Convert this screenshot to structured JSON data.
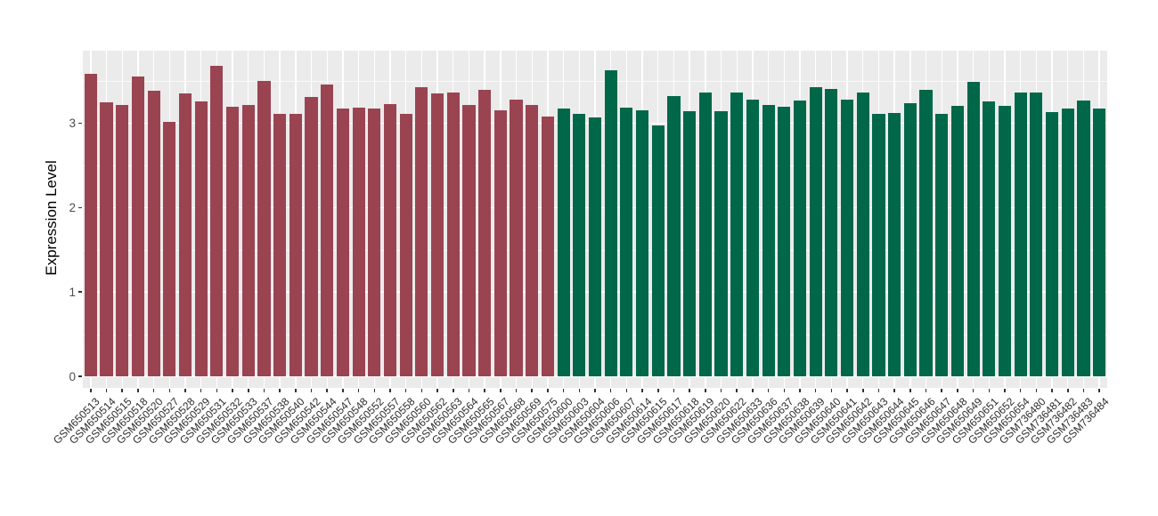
{
  "figure": {
    "background": "#FFFFFF",
    "panel_background": "#EBEBEB",
    "grid_color": "#FFFFFF",
    "axis_tick_color": "#333333",
    "axis_text_color": "#4D4D4D",
    "axis_title_color": "#000000"
  },
  "chart_data": {
    "type": "bar",
    "title": "",
    "xlabel": "",
    "ylabel": "Expression Level",
    "ylim": [
      0,
      3.86
    ],
    "yticks": [
      0,
      1,
      2,
      3
    ],
    "grid": "major and minor horizontal white lines, vertical white line per category",
    "legend_position": "none",
    "series": [
      {
        "name": "group-maroon",
        "color": "#9A4452",
        "categories": [
          "GSM650513",
          "GSM650514",
          "GSM650515",
          "GSM650518",
          "GSM650520",
          "GSM650527",
          "GSM650528",
          "GSM650529",
          "GSM650531",
          "GSM650532",
          "GSM650533",
          "GSM650537",
          "GSM650538",
          "GSM650540",
          "GSM650542",
          "GSM650544",
          "GSM650547",
          "GSM650548",
          "GSM650552",
          "GSM650557",
          "GSM650558",
          "GSM650560",
          "GSM650562",
          "GSM650563",
          "GSM650564",
          "GSM650565",
          "GSM650567",
          "GSM650568",
          "GSM650569",
          "GSM650575"
        ],
        "values": [
          3.59,
          3.25,
          3.22,
          3.56,
          3.39,
          3.02,
          3.35,
          3.26,
          3.68,
          3.2,
          3.22,
          3.5,
          3.11,
          3.11,
          3.31,
          3.46,
          3.18,
          3.19,
          3.17,
          3.23,
          3.11,
          3.43,
          3.35,
          3.37,
          3.22,
          3.4,
          3.15,
          3.28,
          3.22,
          3.08
        ]
      },
      {
        "name": "group-green",
        "color": "#006749",
        "categories": [
          "GSM650600",
          "GSM650603",
          "GSM650604",
          "GSM650606",
          "GSM650607",
          "GSM650614",
          "GSM650615",
          "GSM650617",
          "GSM650618",
          "GSM650619",
          "GSM650620",
          "GSM650622",
          "GSM650633",
          "GSM650636",
          "GSM650637",
          "GSM650638",
          "GSM650639",
          "GSM650640",
          "GSM650641",
          "GSM650642",
          "GSM650643",
          "GSM650644",
          "GSM650645",
          "GSM650646",
          "GSM650647",
          "GSM650648",
          "GSM650649",
          "GSM650651",
          "GSM650652",
          "GSM650654",
          "GSM736480",
          "GSM736481",
          "GSM736482",
          "GSM736483",
          "GSM736484"
        ],
        "values": [
          3.18,
          3.11,
          3.07,
          3.63,
          3.19,
          3.15,
          2.98,
          3.32,
          3.14,
          3.37,
          3.14,
          3.37,
          3.28,
          3.22,
          3.2,
          3.27,
          3.43,
          3.41,
          3.28,
          3.37,
          3.11,
          3.12,
          3.24,
          3.4,
          3.11,
          3.21,
          3.49,
          3.26,
          3.21,
          3.37,
          3.37,
          3.13,
          3.18,
          3.27,
          3.17
        ]
      }
    ]
  }
}
